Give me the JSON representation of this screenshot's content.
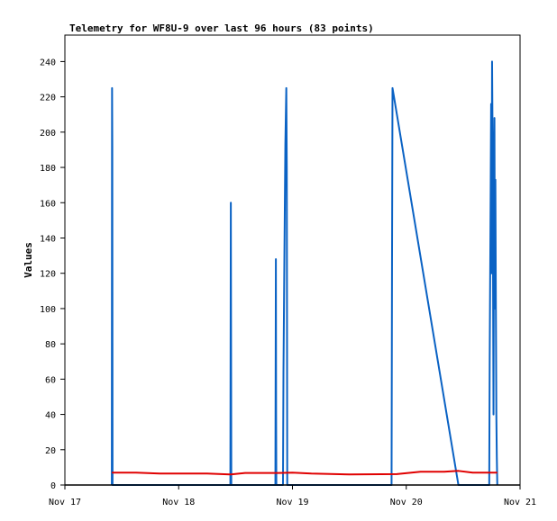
{
  "chart_data": {
    "type": "line",
    "title": "Telemetry for WF8U-9 over last 96 hours (83 points)",
    "xlabel": "",
    "ylabel": "Values",
    "ylim": [
      0,
      255
    ],
    "x_domain_hours": [
      0,
      96
    ],
    "x_ticks": [
      {
        "label": "Nov 17",
        "hour": 0
      },
      {
        "label": "Nov 18",
        "hour": 24
      },
      {
        "label": "Nov 19",
        "hour": 48
      },
      {
        "label": "Nov 20",
        "hour": 72
      },
      {
        "label": "Nov 21",
        "hour": 96
      }
    ],
    "y_ticks": [
      0,
      20,
      40,
      60,
      80,
      100,
      120,
      140,
      160,
      180,
      200,
      220,
      240
    ],
    "grid": false,
    "legend": "none",
    "series": [
      {
        "color": "#0a62c4",
        "points": [
          [
            9.9,
            0
          ],
          [
            9.95,
            225
          ],
          [
            10.0,
            192
          ],
          [
            10.05,
            0
          ],
          [
            34.9,
            0
          ],
          [
            34.95,
            80
          ],
          [
            35.0,
            160
          ],
          [
            35.05,
            80
          ],
          [
            35.1,
            0
          ],
          [
            44.4,
            0
          ],
          [
            44.45,
            64
          ],
          [
            44.5,
            128
          ],
          [
            44.55,
            40
          ],
          [
            44.6,
            0
          ],
          [
            46.0,
            0
          ],
          [
            46.1,
            64
          ],
          [
            46.3,
            130
          ],
          [
            46.5,
            193
          ],
          [
            46.7,
            225
          ],
          [
            46.8,
            180
          ],
          [
            46.9,
            0
          ],
          [
            68.9,
            0
          ],
          [
            69.0,
            128
          ],
          [
            69.1,
            225
          ],
          [
            83.0,
            0
          ],
          [
            89.5,
            0
          ],
          [
            89.6,
            72
          ],
          [
            89.8,
            166
          ],
          [
            89.9,
            216
          ],
          [
            90.0,
            120
          ],
          [
            90.1,
            240
          ],
          [
            90.2,
            200
          ],
          [
            90.3,
            120
          ],
          [
            90.4,
            40
          ],
          [
            90.5,
            156
          ],
          [
            90.6,
            208
          ],
          [
            90.7,
            100
          ],
          [
            90.8,
            173
          ],
          [
            90.9,
            104
          ],
          [
            91.0,
            40
          ],
          [
            91.1,
            16
          ],
          [
            91.2,
            0
          ]
        ]
      },
      {
        "color": "#e00000",
        "points": [
          [
            9.9,
            7
          ],
          [
            15,
            7
          ],
          [
            20,
            6.5
          ],
          [
            30,
            6.5
          ],
          [
            35,
            6
          ],
          [
            38,
            6.8
          ],
          [
            45,
            6.8
          ],
          [
            48,
            7
          ],
          [
            52,
            6.5
          ],
          [
            60,
            6
          ],
          [
            70,
            6.2
          ],
          [
            75,
            7.5
          ],
          [
            80,
            7.5
          ],
          [
            83,
            8
          ],
          [
            86,
            7
          ],
          [
            91.2,
            7
          ]
        ]
      },
      {
        "color": "#000000",
        "points": [
          [
            0,
            0
          ],
          [
            96,
            0
          ]
        ]
      }
    ]
  }
}
